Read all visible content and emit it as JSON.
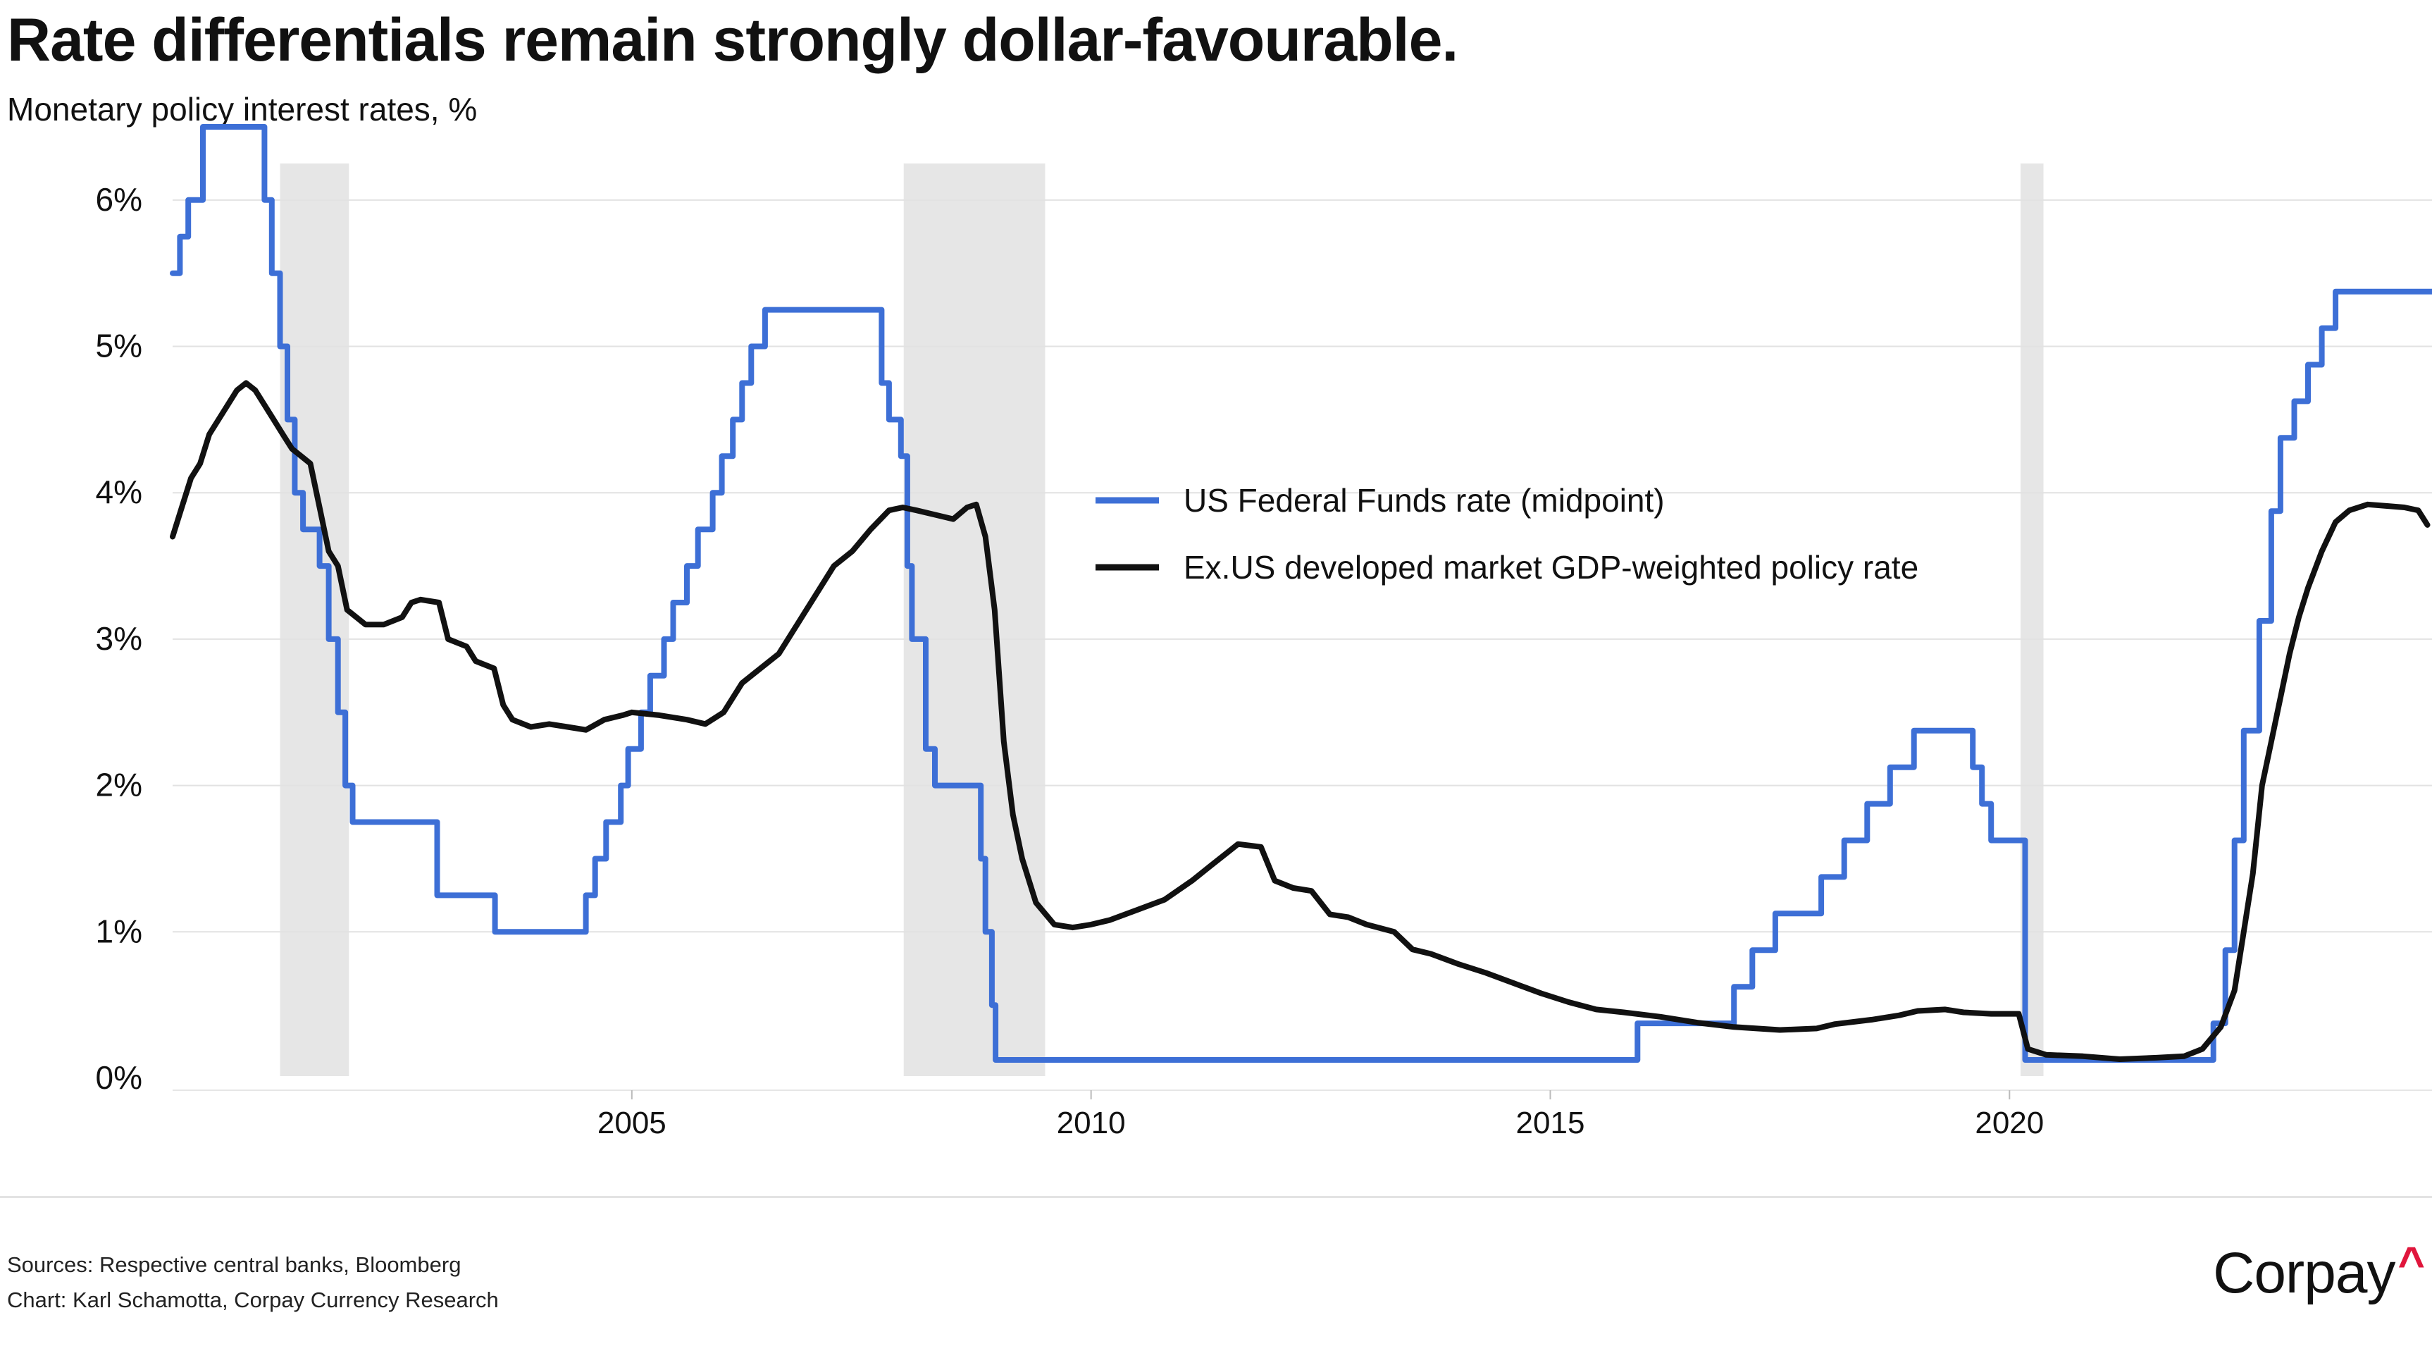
{
  "title": "Rate differentials remain strongly dollar-favourable.",
  "subtitle": "Monetary policy interest rates, %",
  "sources_line": "Sources: Respective central banks, Bloomberg",
  "chart_credit_line": "Chart: Karl Schamotta, Corpay Currency Research",
  "brand": {
    "name": "Corpay",
    "mark": "^",
    "mark_color": "#e0163c"
  },
  "chart_data": {
    "type": "line",
    "x_range": [
      2000.0,
      2024.6
    ],
    "ylim": [
      0,
      6.5
    ],
    "y_ticks": [
      0,
      1,
      2,
      3,
      4,
      5,
      6
    ],
    "y_tick_labels": [
      "0%",
      "1%",
      "2%",
      "3%",
      "4%",
      "5%",
      "6%"
    ],
    "x_ticks": [
      2005,
      2010,
      2015,
      2020
    ],
    "x_tick_labels": [
      "2005",
      "2010",
      "2015",
      "2020"
    ],
    "grid": "horizontal",
    "legend_position": "center-right",
    "recessions": [
      [
        2001.17,
        2001.92
      ],
      [
        2007.96,
        2009.5
      ],
      [
        2020.12,
        2020.37
      ]
    ],
    "recession_color": "#e6e6e6",
    "series": [
      {
        "name": "US Federal Funds rate (midpoint)",
        "color": "#3d6fd6",
        "step": true,
        "points": [
          [
            2000.0,
            5.5
          ],
          [
            2000.08,
            5.75
          ],
          [
            2000.17,
            6.0
          ],
          [
            2000.25,
            6.0
          ],
          [
            2000.33,
            6.5
          ],
          [
            2000.5,
            6.5
          ],
          [
            2000.96,
            6.5
          ],
          [
            2001.0,
            6.0
          ],
          [
            2001.08,
            5.5
          ],
          [
            2001.17,
            5.0
          ],
          [
            2001.25,
            4.5
          ],
          [
            2001.33,
            4.0
          ],
          [
            2001.42,
            3.75
          ],
          [
            2001.5,
            3.75
          ],
          [
            2001.6,
            3.5
          ],
          [
            2001.7,
            3.0
          ],
          [
            2001.8,
            2.5
          ],
          [
            2001.88,
            2.0
          ],
          [
            2001.96,
            1.75
          ],
          [
            2002.5,
            1.75
          ],
          [
            2002.87,
            1.75
          ],
          [
            2002.88,
            1.25
          ],
          [
            2003.5,
            1.25
          ],
          [
            2003.51,
            1.0
          ],
          [
            2004.45,
            1.0
          ],
          [
            2004.5,
            1.25
          ],
          [
            2004.6,
            1.5
          ],
          [
            2004.72,
            1.75
          ],
          [
            2004.88,
            2.0
          ],
          [
            2004.96,
            2.25
          ],
          [
            2005.1,
            2.5
          ],
          [
            2005.2,
            2.75
          ],
          [
            2005.35,
            3.0
          ],
          [
            2005.45,
            3.25
          ],
          [
            2005.6,
            3.5
          ],
          [
            2005.72,
            3.75
          ],
          [
            2005.88,
            4.0
          ],
          [
            2005.98,
            4.25
          ],
          [
            2006.1,
            4.5
          ],
          [
            2006.2,
            4.75
          ],
          [
            2006.3,
            5.0
          ],
          [
            2006.45,
            5.25
          ],
          [
            2007.6,
            5.25
          ],
          [
            2007.72,
            4.75
          ],
          [
            2007.8,
            4.5
          ],
          [
            2007.93,
            4.25
          ],
          [
            2008.0,
            3.5
          ],
          [
            2008.05,
            3.0
          ],
          [
            2008.2,
            2.25
          ],
          [
            2008.3,
            2.0
          ],
          [
            2008.75,
            2.0
          ],
          [
            2008.8,
            1.5
          ],
          [
            2008.85,
            1.0
          ],
          [
            2008.92,
            0.5
          ],
          [
            2008.96,
            0.125
          ],
          [
            2015.9,
            0.125
          ],
          [
            2015.95,
            0.375
          ],
          [
            2016.95,
            0.375
          ],
          [
            2017.0,
            0.625
          ],
          [
            2017.2,
            0.875
          ],
          [
            2017.45,
            1.125
          ],
          [
            2017.95,
            1.375
          ],
          [
            2018.2,
            1.625
          ],
          [
            2018.45,
            1.875
          ],
          [
            2018.7,
            2.125
          ],
          [
            2018.96,
            2.375
          ],
          [
            2019.55,
            2.375
          ],
          [
            2019.6,
            2.125
          ],
          [
            2019.7,
            1.875
          ],
          [
            2019.8,
            1.625
          ],
          [
            2020.1,
            1.625
          ],
          [
            2020.17,
            0.125
          ],
          [
            2022.2,
            0.125
          ],
          [
            2022.22,
            0.375
          ],
          [
            2022.35,
            0.875
          ],
          [
            2022.45,
            1.625
          ],
          [
            2022.55,
            2.375
          ],
          [
            2022.72,
            3.125
          ],
          [
            2022.85,
            3.875
          ],
          [
            2022.95,
            4.375
          ],
          [
            2023.1,
            4.625
          ],
          [
            2023.25,
            4.875
          ],
          [
            2023.4,
            5.125
          ],
          [
            2023.55,
            5.375
          ],
          [
            2024.6,
            5.375
          ]
        ]
      },
      {
        "name": "Ex.US developed market GDP-weighted policy rate",
        "color": "#111111",
        "step": false,
        "points": [
          [
            2000.0,
            3.7
          ],
          [
            2000.1,
            3.9
          ],
          [
            2000.2,
            4.1
          ],
          [
            2000.3,
            4.2
          ],
          [
            2000.4,
            4.4
          ],
          [
            2000.5,
            4.5
          ],
          [
            2000.6,
            4.6
          ],
          [
            2000.7,
            4.7
          ],
          [
            2000.8,
            4.75
          ],
          [
            2000.9,
            4.7
          ],
          [
            2001.0,
            4.6
          ],
          [
            2001.1,
            4.5
          ],
          [
            2001.2,
            4.4
          ],
          [
            2001.3,
            4.3
          ],
          [
            2001.4,
            4.25
          ],
          [
            2001.5,
            4.2
          ],
          [
            2001.6,
            3.9
          ],
          [
            2001.7,
            3.6
          ],
          [
            2001.8,
            3.5
          ],
          [
            2001.9,
            3.2
          ],
          [
            2002.0,
            3.15
          ],
          [
            2002.1,
            3.1
          ],
          [
            2002.3,
            3.1
          ],
          [
            2002.5,
            3.15
          ],
          [
            2002.6,
            3.25
          ],
          [
            2002.7,
            3.27
          ],
          [
            2002.9,
            3.25
          ],
          [
            2003.0,
            3.0
          ],
          [
            2003.2,
            2.95
          ],
          [
            2003.3,
            2.85
          ],
          [
            2003.5,
            2.8
          ],
          [
            2003.6,
            2.55
          ],
          [
            2003.7,
            2.45
          ],
          [
            2003.9,
            2.4
          ],
          [
            2004.1,
            2.42
          ],
          [
            2004.3,
            2.4
          ],
          [
            2004.5,
            2.38
          ],
          [
            2004.7,
            2.45
          ],
          [
            2004.9,
            2.48
          ],
          [
            2005.0,
            2.5
          ],
          [
            2005.3,
            2.48
          ],
          [
            2005.6,
            2.45
          ],
          [
            2005.8,
            2.42
          ],
          [
            2006.0,
            2.5
          ],
          [
            2006.2,
            2.7
          ],
          [
            2006.4,
            2.8
          ],
          [
            2006.6,
            2.9
          ],
          [
            2006.8,
            3.1
          ],
          [
            2007.0,
            3.3
          ],
          [
            2007.2,
            3.5
          ],
          [
            2007.4,
            3.6
          ],
          [
            2007.6,
            3.75
          ],
          [
            2007.8,
            3.88
          ],
          [
            2007.95,
            3.9
          ],
          [
            2008.1,
            3.88
          ],
          [
            2008.3,
            3.85
          ],
          [
            2008.5,
            3.82
          ],
          [
            2008.65,
            3.9
          ],
          [
            2008.75,
            3.92
          ],
          [
            2008.85,
            3.7
          ],
          [
            2008.95,
            3.2
          ],
          [
            2009.05,
            2.3
          ],
          [
            2009.15,
            1.8
          ],
          [
            2009.25,
            1.5
          ],
          [
            2009.4,
            1.2
          ],
          [
            2009.6,
            1.05
          ],
          [
            2009.8,
            1.03
          ],
          [
            2010.0,
            1.05
          ],
          [
            2010.2,
            1.08
          ],
          [
            2010.5,
            1.15
          ],
          [
            2010.8,
            1.22
          ],
          [
            2011.1,
            1.35
          ],
          [
            2011.3,
            1.45
          ],
          [
            2011.5,
            1.55
          ],
          [
            2011.6,
            1.6
          ],
          [
            2011.85,
            1.58
          ],
          [
            2012.0,
            1.35
          ],
          [
            2012.2,
            1.3
          ],
          [
            2012.4,
            1.28
          ],
          [
            2012.6,
            1.12
          ],
          [
            2012.8,
            1.1
          ],
          [
            2013.0,
            1.05
          ],
          [
            2013.3,
            1.0
          ],
          [
            2013.5,
            0.88
          ],
          [
            2013.7,
            0.85
          ],
          [
            2014.0,
            0.78
          ],
          [
            2014.3,
            0.72
          ],
          [
            2014.6,
            0.65
          ],
          [
            2014.9,
            0.58
          ],
          [
            2015.2,
            0.52
          ],
          [
            2015.5,
            0.47
          ],
          [
            2015.8,
            0.45
          ],
          [
            2016.2,
            0.42
          ],
          [
            2016.6,
            0.38
          ],
          [
            2017.0,
            0.35
          ],
          [
            2017.5,
            0.33
          ],
          [
            2017.9,
            0.34
          ],
          [
            2018.1,
            0.37
          ],
          [
            2018.5,
            0.4
          ],
          [
            2018.8,
            0.43
          ],
          [
            2019.0,
            0.46
          ],
          [
            2019.3,
            0.47
          ],
          [
            2019.5,
            0.45
          ],
          [
            2019.8,
            0.44
          ],
          [
            2020.1,
            0.44
          ],
          [
            2020.2,
            0.2
          ],
          [
            2020.4,
            0.16
          ],
          [
            2020.8,
            0.15
          ],
          [
            2021.2,
            0.13
          ],
          [
            2021.6,
            0.14
          ],
          [
            2021.9,
            0.15
          ],
          [
            2022.1,
            0.2
          ],
          [
            2022.3,
            0.35
          ],
          [
            2022.45,
            0.6
          ],
          [
            2022.55,
            1.0
          ],
          [
            2022.65,
            1.4
          ],
          [
            2022.75,
            2.0
          ],
          [
            2022.85,
            2.3
          ],
          [
            2022.95,
            2.6
          ],
          [
            2023.05,
            2.9
          ],
          [
            2023.15,
            3.15
          ],
          [
            2023.25,
            3.35
          ],
          [
            2023.4,
            3.6
          ],
          [
            2023.55,
            3.8
          ],
          [
            2023.7,
            3.88
          ],
          [
            2023.9,
            3.92
          ],
          [
            2024.1,
            3.91
          ],
          [
            2024.3,
            3.9
          ],
          [
            2024.45,
            3.88
          ],
          [
            2024.55,
            3.78
          ]
        ]
      }
    ]
  }
}
